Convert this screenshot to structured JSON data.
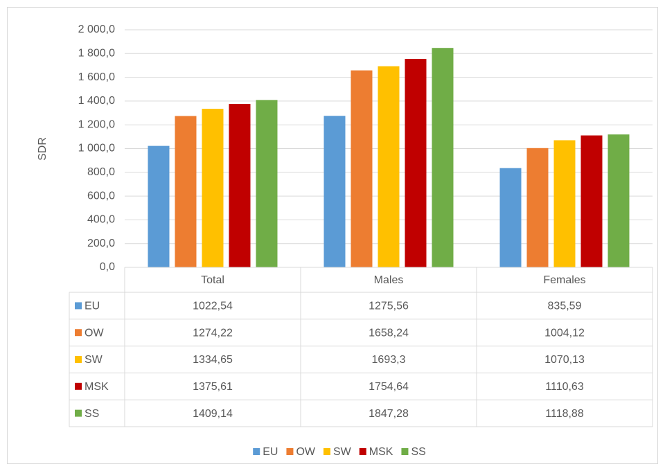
{
  "chart_data": {
    "type": "bar",
    "y_label": "SDR",
    "categories": [
      "Total",
      "Males",
      "Females"
    ],
    "series": [
      {
        "name": "EU",
        "color": "#5b9bd5",
        "values": [
          1022.54,
          1275.56,
          835.59
        ],
        "value_labels": [
          "1022,54",
          "1275,56",
          "835,59"
        ]
      },
      {
        "name": "OW",
        "color": "#ed7d31",
        "values": [
          1274.22,
          1658.24,
          1004.12
        ],
        "value_labels": [
          "1274,22",
          "1658,24",
          "1004,12"
        ]
      },
      {
        "name": "SW",
        "color": "#ffc000",
        "values": [
          1334.65,
          1693.3,
          1070.13
        ],
        "value_labels": [
          "1334,65",
          "1693,3",
          "1070,13"
        ]
      },
      {
        "name": "MSK",
        "color": "#c00000",
        "values": [
          1375.61,
          1754.64,
          1110.63
        ],
        "value_labels": [
          "1375,61",
          "1754,64",
          "1110,63"
        ]
      },
      {
        "name": "SS",
        "color": "#70ad47",
        "values": [
          1409.14,
          1847.28,
          1118.88
        ],
        "value_labels": [
          "1409,14",
          "1847,28",
          "1118,88"
        ]
      }
    ],
    "ylim": [
      0,
      2000
    ],
    "yticks": [
      {
        "value": 0,
        "label": "0,0"
      },
      {
        "value": 200,
        "label": "200,0"
      },
      {
        "value": 400,
        "label": "400,0"
      },
      {
        "value": 600,
        "label": "600,0"
      },
      {
        "value": 800,
        "label": "800,0"
      },
      {
        "value": 1000,
        "label": "1 000,0"
      },
      {
        "value": 1200,
        "label": "1 200,0"
      },
      {
        "value": 1400,
        "label": "1 400,0"
      },
      {
        "value": 1600,
        "label": "1 600,0"
      },
      {
        "value": 1800,
        "label": "1 800,0"
      },
      {
        "value": 2000,
        "label": "2 000,0"
      }
    ],
    "grid": true,
    "legend": "bottom"
  }
}
